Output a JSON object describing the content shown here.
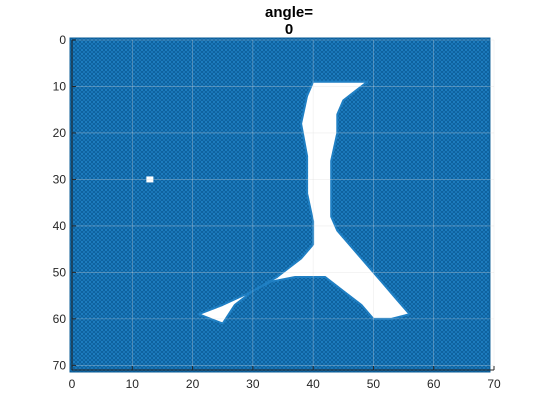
{
  "chart_data": {
    "type": "scatter",
    "title": [
      "angle=",
      "0"
    ],
    "xlabel": "",
    "ylabel": "",
    "xlim": [
      0,
      70
    ],
    "ylim": [
      0,
      71
    ],
    "y_reversed": true,
    "grid": true,
    "x_ticks": [
      0,
      10,
      20,
      30,
      40,
      50,
      60,
      70
    ],
    "y_ticks": [
      0,
      10,
      20,
      30,
      40,
      50,
      60,
      70
    ],
    "marker_color": "#0072BD",
    "marker_style": "circle",
    "filled_region": {
      "x": [
        0,
        69
      ],
      "y": [
        0,
        71
      ]
    },
    "empty_region_outline": [
      [
        40,
        9
      ],
      [
        49,
        9
      ],
      [
        47,
        11
      ],
      [
        45,
        13
      ],
      [
        44,
        16
      ],
      [
        44,
        20
      ],
      [
        43,
        26
      ],
      [
        43,
        32
      ],
      [
        43,
        38
      ],
      [
        44,
        41
      ],
      [
        46,
        44
      ],
      [
        48,
        47
      ],
      [
        50,
        50
      ],
      [
        52,
        53
      ],
      [
        54,
        56
      ],
      [
        56,
        59
      ],
      [
        53,
        60
      ],
      [
        50,
        60
      ],
      [
        48,
        57
      ],
      [
        45,
        54
      ],
      [
        42,
        51
      ],
      [
        37,
        51
      ],
      [
        33,
        52
      ],
      [
        30,
        54
      ],
      [
        27,
        57
      ],
      [
        25,
        61
      ],
      [
        21,
        59
      ],
      [
        25,
        57
      ],
      [
        30,
        54
      ],
      [
        34,
        51
      ],
      [
        38,
        47
      ],
      [
        40,
        44
      ],
      [
        40,
        39
      ],
      [
        39,
        33
      ],
      [
        39,
        25
      ],
      [
        38,
        18
      ],
      [
        39,
        12
      ],
      [
        40,
        9
      ]
    ],
    "isolated_gap": [
      13,
      30
    ]
  }
}
